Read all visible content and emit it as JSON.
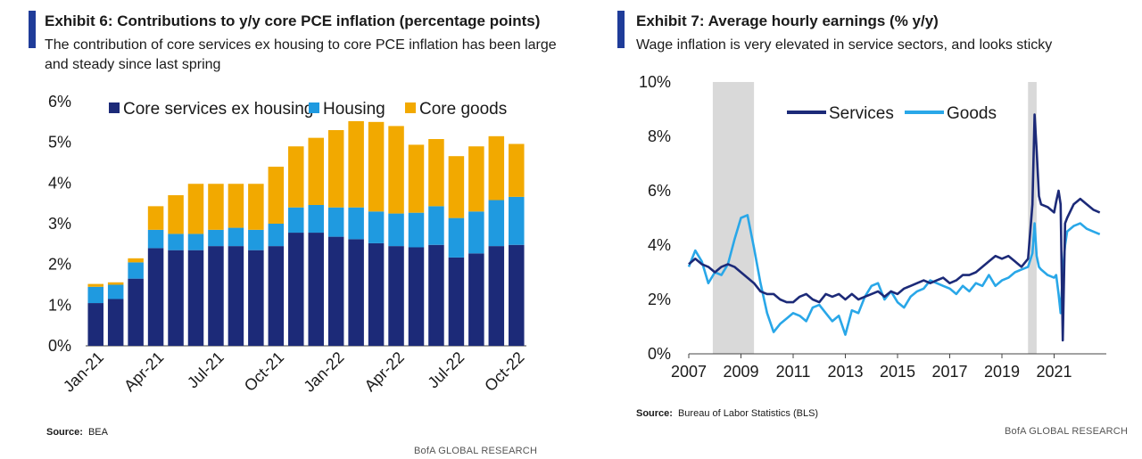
{
  "left": {
    "title": "Exhibit 6: Contributions to y/y core PCE inflation (percentage points)",
    "subtitle": "The contribution of core services ex housing to core PCE inflation has been large and steady since last spring",
    "source_label": "Source:",
    "source_text": "BEA",
    "footer": "BofA GLOBAL RESEARCH"
  },
  "right": {
    "title": "Exhibit 7: Average hourly earnings (% y/y)",
    "subtitle": "Wage inflation is very elevated in service sectors, and looks sticky",
    "source_label": "Source:",
    "source_text": "Bureau of Labor Statistics (BLS)",
    "footer": "BofA GLOBAL RESEARCH"
  },
  "chart_data": [
    {
      "type": "bar",
      "stacked": true,
      "title": "Exhibit 6: Contributions to y/y core PCE inflation (percentage points)",
      "ylim": [
        0,
        6
      ],
      "yticks": [
        "0%",
        "1%",
        "2%",
        "3%",
        "4%",
        "5%",
        "6%"
      ],
      "xtick_labels": [
        "Jan-21",
        "Apr-21",
        "Jul-21",
        "Oct-21",
        "Jan-22",
        "Apr-22",
        "Jul-22",
        "Oct-22"
      ],
      "categories": [
        "Jan-21",
        "Feb-21",
        "Mar-21",
        "Apr-21",
        "May-21",
        "Jun-21",
        "Jul-21",
        "Aug-21",
        "Sep-21",
        "Oct-21",
        "Nov-21",
        "Dec-21",
        "Jan-22",
        "Feb-22",
        "Mar-22",
        "Apr-22",
        "May-22",
        "Jun-22",
        "Jul-22",
        "Aug-22",
        "Sep-22",
        "Oct-22"
      ],
      "legend_position": "top",
      "series": [
        {
          "name": "Core services ex housing",
          "color": "#1c2a78",
          "values": [
            1.05,
            1.15,
            1.65,
            2.4,
            2.35,
            2.35,
            2.45,
            2.45,
            2.35,
            2.45,
            2.78,
            2.78,
            2.68,
            2.62,
            2.52,
            2.45,
            2.42,
            2.48,
            2.17,
            2.27,
            2.45,
            2.48
          ]
        },
        {
          "name": "Housing",
          "color": "#1f9ae0",
          "values": [
            0.4,
            0.35,
            0.4,
            0.45,
            0.4,
            0.4,
            0.4,
            0.45,
            0.5,
            0.55,
            0.62,
            0.68,
            0.72,
            0.78,
            0.78,
            0.8,
            0.85,
            0.95,
            0.97,
            1.03,
            1.13,
            1.18
          ]
        },
        {
          "name": "Core goods",
          "color": "#f2a900",
          "values": [
            0.07,
            0.06,
            0.1,
            0.58,
            0.95,
            1.23,
            1.13,
            1.08,
            1.13,
            1.4,
            1.5,
            1.65,
            1.9,
            2.12,
            2.2,
            2.15,
            1.67,
            1.65,
            1.52,
            1.6,
            1.57,
            1.3
          ]
        }
      ]
    },
    {
      "type": "line",
      "title": "Exhibit 7: Average hourly earnings (% y/y)",
      "ylim": [
        0,
        10
      ],
      "yticks": [
        "0%",
        "2%",
        "4%",
        "6%",
        "8%",
        "10%"
      ],
      "xlim": [
        2007,
        2023
      ],
      "xticks": [
        "2007",
        "2009",
        "2011",
        "2013",
        "2015",
        "2017",
        "2019",
        "2021"
      ],
      "legend_position": "top-center",
      "recessions": [
        [
          2007.92,
          2009.5
        ],
        [
          2020.0,
          2020.33
        ]
      ],
      "recession_color": "#d9d9d9",
      "series": [
        {
          "name": "Services",
          "color": "#1c2a78",
          "x": [
            2007.0,
            2007.25,
            2007.5,
            2007.75,
            2008.0,
            2008.25,
            2008.5,
            2008.75,
            2009.0,
            2009.25,
            2009.5,
            2009.75,
            2010.0,
            2010.25,
            2010.5,
            2010.75,
            2011.0,
            2011.25,
            2011.5,
            2011.75,
            2012.0,
            2012.25,
            2012.5,
            2012.75,
            2013.0,
            2013.25,
            2013.5,
            2013.75,
            2014.0,
            2014.25,
            2014.5,
            2014.75,
            2015.0,
            2015.25,
            2015.5,
            2015.75,
            2016.0,
            2016.25,
            2016.5,
            2016.75,
            2017.0,
            2017.25,
            2017.5,
            2017.75,
            2018.0,
            2018.25,
            2018.5,
            2018.75,
            2019.0,
            2019.25,
            2019.5,
            2019.75,
            2020.0,
            2020.17,
            2020.25,
            2020.33,
            2020.42,
            2020.5,
            2020.75,
            2021.0,
            2021.08,
            2021.17,
            2021.25,
            2021.33,
            2021.42,
            2021.5,
            2021.75,
            2022.0,
            2022.25,
            2022.5,
            2022.75
          ],
          "y": [
            3.3,
            3.5,
            3.3,
            3.2,
            3.0,
            3.2,
            3.3,
            3.2,
            3.0,
            2.8,
            2.6,
            2.3,
            2.2,
            2.2,
            2.0,
            1.9,
            1.9,
            2.1,
            2.2,
            2.0,
            1.9,
            2.2,
            2.1,
            2.2,
            2.0,
            2.2,
            2.0,
            2.1,
            2.2,
            2.3,
            2.1,
            2.3,
            2.2,
            2.4,
            2.5,
            2.6,
            2.7,
            2.6,
            2.7,
            2.8,
            2.6,
            2.7,
            2.9,
            2.9,
            3.0,
            3.2,
            3.4,
            3.6,
            3.5,
            3.6,
            3.4,
            3.2,
            3.5,
            5.5,
            8.8,
            7.5,
            5.8,
            5.5,
            5.4,
            5.2,
            5.6,
            6.0,
            5.5,
            0.5,
            4.8,
            5.0,
            5.5,
            5.7,
            5.5,
            5.3,
            5.2
          ]
        },
        {
          "name": "Goods",
          "color": "#29a7e8",
          "x": [
            2007.0,
            2007.25,
            2007.5,
            2007.75,
            2008.0,
            2008.25,
            2008.5,
            2008.75,
            2009.0,
            2009.25,
            2009.5,
            2009.75,
            2010.0,
            2010.25,
            2010.5,
            2010.75,
            2011.0,
            2011.25,
            2011.5,
            2011.75,
            2012.0,
            2012.25,
            2012.5,
            2012.75,
            2013.0,
            2013.25,
            2013.5,
            2013.75,
            2014.0,
            2014.25,
            2014.5,
            2014.75,
            2015.0,
            2015.25,
            2015.5,
            2015.75,
            2016.0,
            2016.25,
            2016.5,
            2016.75,
            2017.0,
            2017.25,
            2017.5,
            2017.75,
            2018.0,
            2018.25,
            2018.5,
            2018.75,
            2019.0,
            2019.25,
            2019.5,
            2019.75,
            2020.0,
            2020.17,
            2020.25,
            2020.33,
            2020.42,
            2020.5,
            2020.75,
            2021.0,
            2021.08,
            2021.17,
            2021.25,
            2021.33,
            2021.42,
            2021.5,
            2021.75,
            2022.0,
            2022.25,
            2022.5,
            2022.75
          ],
          "y": [
            3.2,
            3.8,
            3.4,
            2.6,
            3.0,
            2.9,
            3.3,
            4.2,
            5.0,
            5.1,
            3.9,
            2.6,
            1.5,
            0.8,
            1.1,
            1.3,
            1.5,
            1.4,
            1.2,
            1.7,
            1.8,
            1.5,
            1.2,
            1.4,
            0.7,
            1.6,
            1.5,
            2.1,
            2.5,
            2.6,
            2.0,
            2.3,
            1.9,
            1.7,
            2.1,
            2.3,
            2.4,
            2.7,
            2.6,
            2.5,
            2.4,
            2.2,
            2.5,
            2.3,
            2.6,
            2.5,
            2.9,
            2.5,
            2.7,
            2.8,
            3.0,
            3.1,
            3.2,
            3.7,
            4.8,
            3.6,
            3.2,
            3.1,
            2.9,
            2.8,
            2.9,
            2.2,
            1.5,
            3.0,
            4.0,
            4.5,
            4.7,
            4.8,
            4.6,
            4.5,
            4.4
          ]
        }
      ]
    }
  ]
}
